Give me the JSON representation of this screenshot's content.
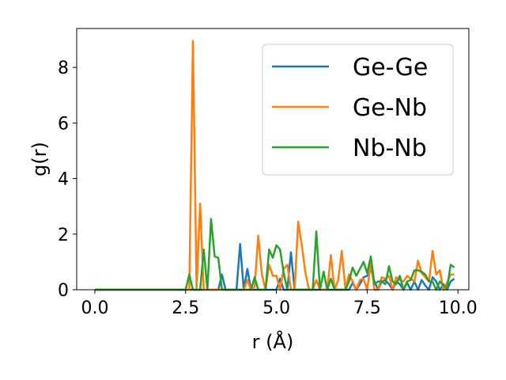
{
  "chart_data": {
    "type": "line",
    "title": "",
    "xlabel": "r (Å)",
    "ylabel": "g(r)",
    "xlim": [
      -0.5,
      10.3
    ],
    "ylim": [
      0,
      9.4
    ],
    "xticks": [
      0.0,
      2.5,
      5.0,
      7.5,
      10.0
    ],
    "xtick_labels": [
      "0.0",
      "2.5",
      "5.0",
      "7.5",
      "10.0"
    ],
    "yticks": [
      0,
      2,
      4,
      6,
      8
    ],
    "ytick_labels": [
      "0",
      "2",
      "4",
      "6",
      "8"
    ],
    "grid": false,
    "legend": {
      "placement": "top-right"
    },
    "series": [
      {
        "name": "Ge-Ge",
        "color": "#1f77b4",
        "x": [
          0.0,
          2.5,
          2.6,
          2.7,
          2.8,
          2.9,
          3.0,
          3.1,
          3.2,
          3.3,
          3.4,
          3.5,
          3.6,
          3.7,
          3.8,
          3.9,
          4.0,
          4.1,
          4.2,
          4.3,
          4.4,
          4.5,
          4.6,
          4.7,
          4.8,
          4.9,
          5.0,
          5.1,
          5.2,
          5.3,
          5.4,
          5.5,
          5.6,
          5.7,
          5.8,
          5.9,
          6.0,
          6.1,
          6.2,
          6.3,
          6.4,
          6.5,
          6.6,
          6.7,
          6.8,
          6.9,
          7.0,
          7.1,
          7.2,
          7.3,
          7.4,
          7.5,
          7.6,
          7.7,
          7.8,
          7.9,
          8.0,
          8.1,
          8.2,
          8.3,
          8.4,
          8.5,
          8.6,
          8.7,
          8.8,
          8.9,
          9.0,
          9.1,
          9.2,
          9.3,
          9.4,
          9.5,
          9.6,
          9.7,
          9.8,
          9.9
        ],
        "y": [
          0,
          0,
          0,
          0,
          0,
          0,
          0,
          0,
          0,
          0,
          0,
          0.55,
          0,
          0,
          0,
          0,
          1.65,
          0,
          0.75,
          0,
          0,
          0,
          0,
          0,
          0,
          0,
          0,
          0.4,
          0,
          0,
          1.35,
          0,
          0,
          0,
          0,
          0,
          0,
          0,
          0,
          0,
          0,
          0,
          0,
          0,
          0,
          0,
          0,
          0.25,
          0,
          0.2,
          0.45,
          0.5,
          0.75,
          0.3,
          0,
          0.3,
          0.35,
          0.2,
          0,
          0.3,
          0.2,
          0,
          0.25,
          0,
          0.3,
          0,
          0.35,
          0.15,
          0,
          0.45,
          0.3,
          0,
          0.2,
          0,
          0.3,
          0.4
        ]
      },
      {
        "name": "Ge-Nb",
        "color": "#ff7f0e",
        "x": [
          0.0,
          2.5,
          2.6,
          2.7,
          2.8,
          2.9,
          3.0,
          3.1,
          3.2,
          3.3,
          3.4,
          3.5,
          3.6,
          3.7,
          3.8,
          3.9,
          4.0,
          4.1,
          4.2,
          4.3,
          4.4,
          4.5,
          4.6,
          4.7,
          4.8,
          4.9,
          5.0,
          5.1,
          5.2,
          5.3,
          5.4,
          5.5,
          5.6,
          5.7,
          5.8,
          5.9,
          6.0,
          6.1,
          6.2,
          6.3,
          6.4,
          6.5,
          6.6,
          6.7,
          6.8,
          6.9,
          7.0,
          7.1,
          7.2,
          7.3,
          7.4,
          7.5,
          7.6,
          7.7,
          7.8,
          7.9,
          8.0,
          8.1,
          8.2,
          8.3,
          8.4,
          8.5,
          8.6,
          8.7,
          8.8,
          8.9,
          9.0,
          9.1,
          9.2,
          9.3,
          9.4,
          9.5,
          9.6,
          9.7,
          9.8,
          9.9
        ],
        "y": [
          0,
          0,
          0,
          8.95,
          0,
          3.1,
          0,
          0,
          0,
          0,
          0,
          0,
          0,
          0,
          0,
          0,
          0,
          0,
          0.35,
          0,
          0.1,
          1.95,
          0.55,
          0,
          0.9,
          0.5,
          0.5,
          0,
          0.75,
          0.9,
          0,
          0,
          2.45,
          1.6,
          0.6,
          0,
          0,
          0.35,
          0,
          0,
          0,
          1.25,
          0,
          0.35,
          1.4,
          0,
          0.55,
          0.3,
          0,
          0.35,
          0.4,
          0,
          1.0,
          0,
          0,
          0.45,
          0.4,
          0.5,
          0,
          0.45,
          0.35,
          0.3,
          0.5,
          0.4,
          0.3,
          1.05,
          0.6,
          0.45,
          0.3,
          1.4,
          0.55,
          0.7,
          0,
          0.25,
          0.55,
          0.55
        ]
      },
      {
        "name": "Nb-Nb",
        "color": "#2ca02c",
        "x": [
          0.0,
          2.5,
          2.6,
          2.7,
          2.8,
          2.9,
          3.0,
          3.1,
          3.2,
          3.3,
          3.4,
          3.5,
          3.6,
          3.7,
          3.8,
          3.9,
          4.0,
          4.1,
          4.2,
          4.3,
          4.4,
          4.5,
          4.6,
          4.7,
          4.8,
          4.9,
          5.0,
          5.1,
          5.2,
          5.3,
          5.4,
          5.5,
          5.6,
          5.7,
          5.8,
          5.9,
          6.0,
          6.1,
          6.2,
          6.3,
          6.4,
          6.5,
          6.6,
          6.7,
          6.8,
          6.9,
          7.0,
          7.1,
          7.2,
          7.3,
          7.4,
          7.5,
          7.6,
          7.7,
          7.8,
          7.9,
          8.0,
          8.1,
          8.2,
          8.3,
          8.4,
          8.5,
          8.6,
          8.7,
          8.8,
          8.9,
          9.0,
          9.1,
          9.2,
          9.3,
          9.4,
          9.5,
          9.6,
          9.7,
          9.8,
          9.9
        ],
        "y": [
          0,
          0,
          0.55,
          0,
          0,
          0,
          1.45,
          0,
          2.55,
          1.2,
          1.15,
          0,
          0,
          0,
          0,
          0,
          0,
          0,
          0,
          0,
          0.45,
          0,
          0,
          0,
          1.45,
          1.15,
          1.6,
          1.45,
          0.6,
          0,
          0,
          0,
          0,
          0,
          0,
          0,
          0,
          2.1,
          0,
          0.65,
          0,
          0.4,
          0,
          0,
          0,
          0,
          0.3,
          0.8,
          0.5,
          0.75,
          1.0,
          0.6,
          1.2,
          0.2,
          0.3,
          0.3,
          0.2,
          0.85,
          0.3,
          0.2,
          0.5,
          0,
          0.3,
          0.35,
          0.7,
          0.7,
          0.65,
          0.55,
          0.3,
          0.3,
          0,
          0.3,
          0.15,
          0.05,
          0.9,
          0.8
        ]
      }
    ]
  }
}
